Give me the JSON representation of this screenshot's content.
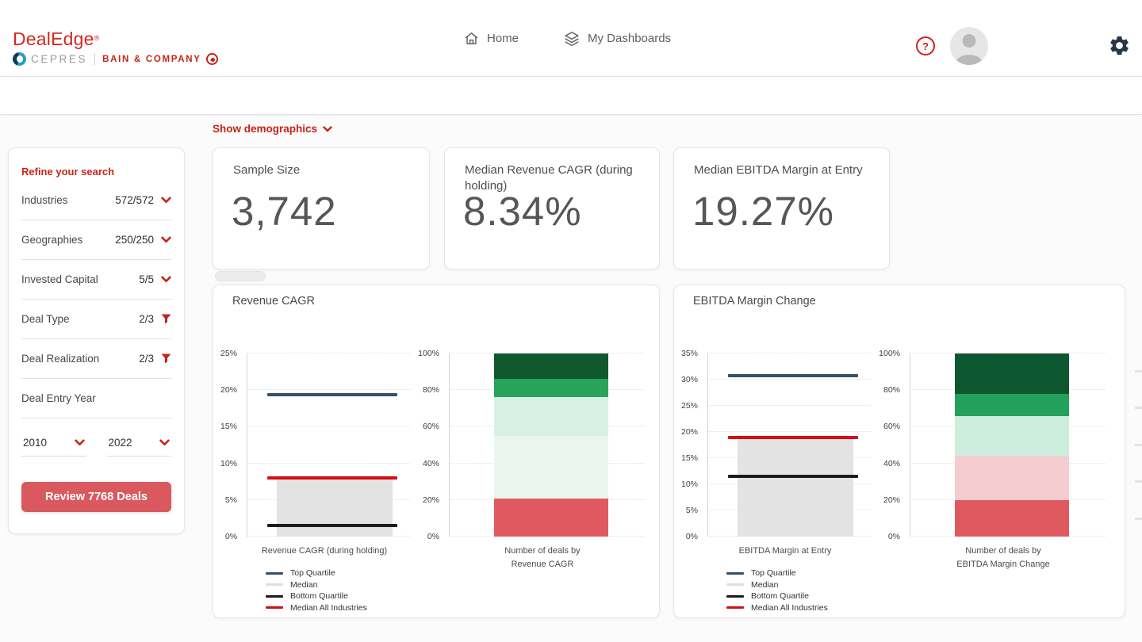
{
  "header": {
    "brand": {
      "name": "DealEdge",
      "reg": "®",
      "cepres": "CEPRES",
      "bain": "BAIN & COMPANY"
    },
    "nav": {
      "home": "Home",
      "dashboards": "My Dashboards"
    },
    "help_glyph": "?"
  },
  "filters_bar": {
    "show_demographics": "Show demographics"
  },
  "sidebar": {
    "title": "Refine your search",
    "filters": [
      {
        "label": "Industries",
        "value": "572/572",
        "icon": "chevron-down"
      },
      {
        "label": "Geographies",
        "value": "250/250",
        "icon": "chevron-down"
      },
      {
        "label": "Invested Capital",
        "value": "5/5",
        "icon": "chevron-down"
      },
      {
        "label": "Deal Type",
        "value": "2/3",
        "icon": "funnel"
      },
      {
        "label": "Deal Realization",
        "value": "2/3",
        "icon": "funnel"
      },
      {
        "label": "Deal Entry Year",
        "value": "",
        "icon": "none"
      }
    ],
    "year_from": "2010",
    "year_to": "2022",
    "review_button": "Review 7768 Deals"
  },
  "kpis": [
    {
      "label": "Sample Size",
      "value": "3,742"
    },
    {
      "label": "Median Revenue CAGR (during holding)",
      "value": "8.34%"
    },
    {
      "label": "Median EBITDA Margin at Entry",
      "value": "19.27%"
    }
  ],
  "chart_data": [
    {
      "type": "quartile-band + stacked-bar",
      "title": "Revenue CAGR",
      "quartile": {
        "ymax": 25,
        "ytick_labels": [
          "0%",
          "5%",
          "10%",
          "15%",
          "20%",
          "25%"
        ],
        "top_quartile": 19.4,
        "median": 8.34,
        "bottom_quartile": 1.5,
        "median_all_industries": 8.05,
        "xlabel": "Revenue CAGR (during holding)"
      },
      "stacked": {
        "ytick_labels": [
          "0%",
          "20%",
          "40%",
          "60%",
          "80%",
          "100%"
        ],
        "xlabel_line1": "Number of deals by",
        "xlabel_line2": "Revenue CAGR",
        "segments": [
          {
            "value": 21,
            "color": "#df5a60"
          },
          {
            "value": 34,
            "color": "#eaf6ef"
          },
          {
            "value": 21,
            "color": "#d8f0e3"
          },
          {
            "value": 10,
            "color": "#27a35c"
          },
          {
            "value": 14,
            "color": "#10592e"
          }
        ]
      },
      "legend": [
        {
          "label": "Top Quartile",
          "color": "#34506b"
        },
        {
          "label": "Median",
          "color": "#dedede"
        },
        {
          "label": "Bottom Quartile",
          "color": "#1c1c1c"
        },
        {
          "label": "Median All Industries",
          "color": "#d40f14"
        }
      ]
    },
    {
      "type": "quartile-band + stacked-bar",
      "title": "EBITDA Margin Change",
      "quartile": {
        "ymax": 35,
        "ytick_labels": [
          "0%",
          "5%",
          "10%",
          "15%",
          "20%",
          "25%",
          "30%",
          "35%"
        ],
        "top_quartile": 30.8,
        "median": 19.27,
        "bottom_quartile": 11.5,
        "median_all_industries": 18.9,
        "xlabel": "EBITDA Margin at Entry"
      },
      "stacked": {
        "ytick_labels": [
          "0%",
          "20%",
          "40%",
          "60%",
          "80%",
          "100%"
        ],
        "xlabel_line1": "Number of deals by",
        "xlabel_line2": "EBITDA Margin Change",
        "segments": [
          {
            "value": 20,
            "color": "#df5a60"
          },
          {
            "value": 24,
            "color": "#f5cdd1"
          },
          {
            "value": 22,
            "color": "#cdeedd"
          },
          {
            "value": 12,
            "color": "#23a05c"
          },
          {
            "value": 22,
            "color": "#0d5730"
          }
        ]
      },
      "legend": [
        {
          "label": "Top Quartile",
          "color": "#34506b"
        },
        {
          "label": "Median",
          "color": "#dedede"
        },
        {
          "label": "Bottom Quartile",
          "color": "#1c1c1c"
        },
        {
          "label": "Median All Industries",
          "color": "#d40f14"
        }
      ]
    }
  ],
  "colors": {
    "accent_red": "#c62517",
    "button_red": "#d9595f",
    "gear_navy": "#253746"
  }
}
